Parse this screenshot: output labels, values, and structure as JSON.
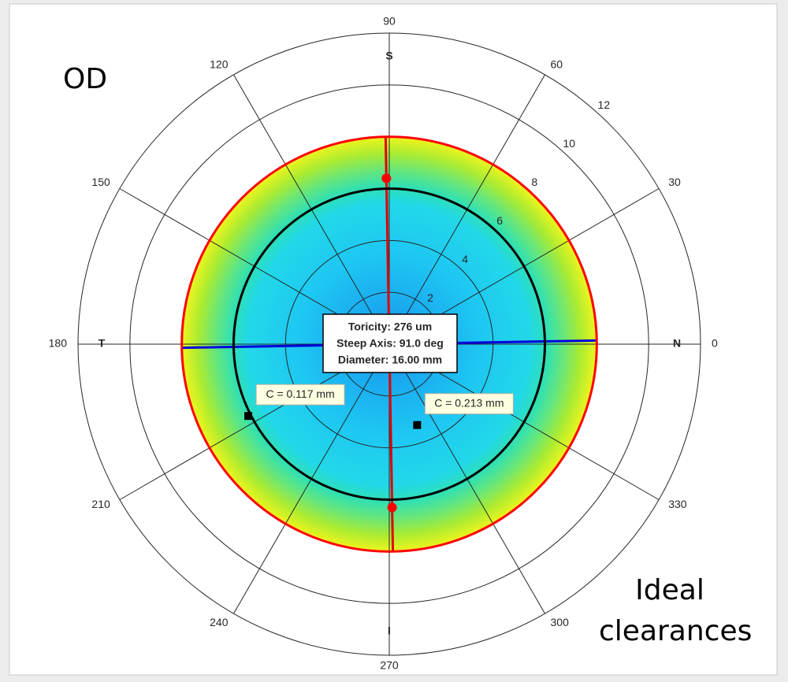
{
  "chart_data": {
    "type": "polar",
    "annotations": {
      "top_left": "OD",
      "bottom_right": "Ideal clearances"
    },
    "rlim": [
      0,
      12
    ],
    "rticks": [
      2,
      4,
      6,
      8,
      10,
      12
    ],
    "thetaticks": [
      0,
      30,
      60,
      90,
      120,
      150,
      180,
      210,
      240,
      270,
      300,
      330
    ],
    "directions": [
      {
        "label": "N",
        "theta": 0
      },
      {
        "label": "S",
        "theta": 90
      },
      {
        "label": "T",
        "theta": 180
      },
      {
        "label": "I",
        "theta": 270
      }
    ],
    "circles": [
      {
        "r": 8,
        "color": "#ff0000"
      },
      {
        "r": 6,
        "color": "#000000"
      }
    ],
    "axis_lines": [
      {
        "theta": 91,
        "r": 8,
        "color": "#e00000"
      },
      {
        "theta": 1,
        "r": 8,
        "color": "#0000dd"
      }
    ],
    "points": [
      {
        "theta": 91,
        "r": 6.4
      },
      {
        "theta": 271,
        "r": 6.3
      }
    ],
    "info_box": [
      "Toricity: 276 um",
      "Steep Axis: 91.0 deg",
      "Diameter: 16.00 mm"
    ],
    "datatips": [
      {
        "label": "C = 0.117 mm",
        "theta": 207,
        "r": 6.1
      },
      {
        "label": "C = 0.213 mm",
        "theta": 289,
        "r": 3.3
      }
    ]
  }
}
